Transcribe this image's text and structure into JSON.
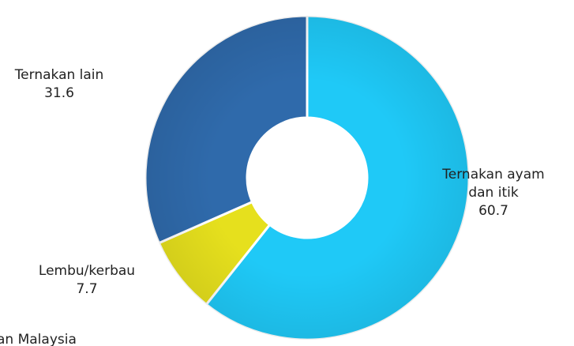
{
  "chart_data": {
    "type": "donut",
    "categories": [
      "Ternakan ayam dan itik",
      "Lembu/kerbau",
      "Ternakan lain"
    ],
    "values": [
      60.7,
      7.7,
      31.6
    ],
    "colors": [
      "#1fc9f7",
      "#e6e01d",
      "#2f6aab"
    ],
    "note": "an Malaysia"
  }
}
